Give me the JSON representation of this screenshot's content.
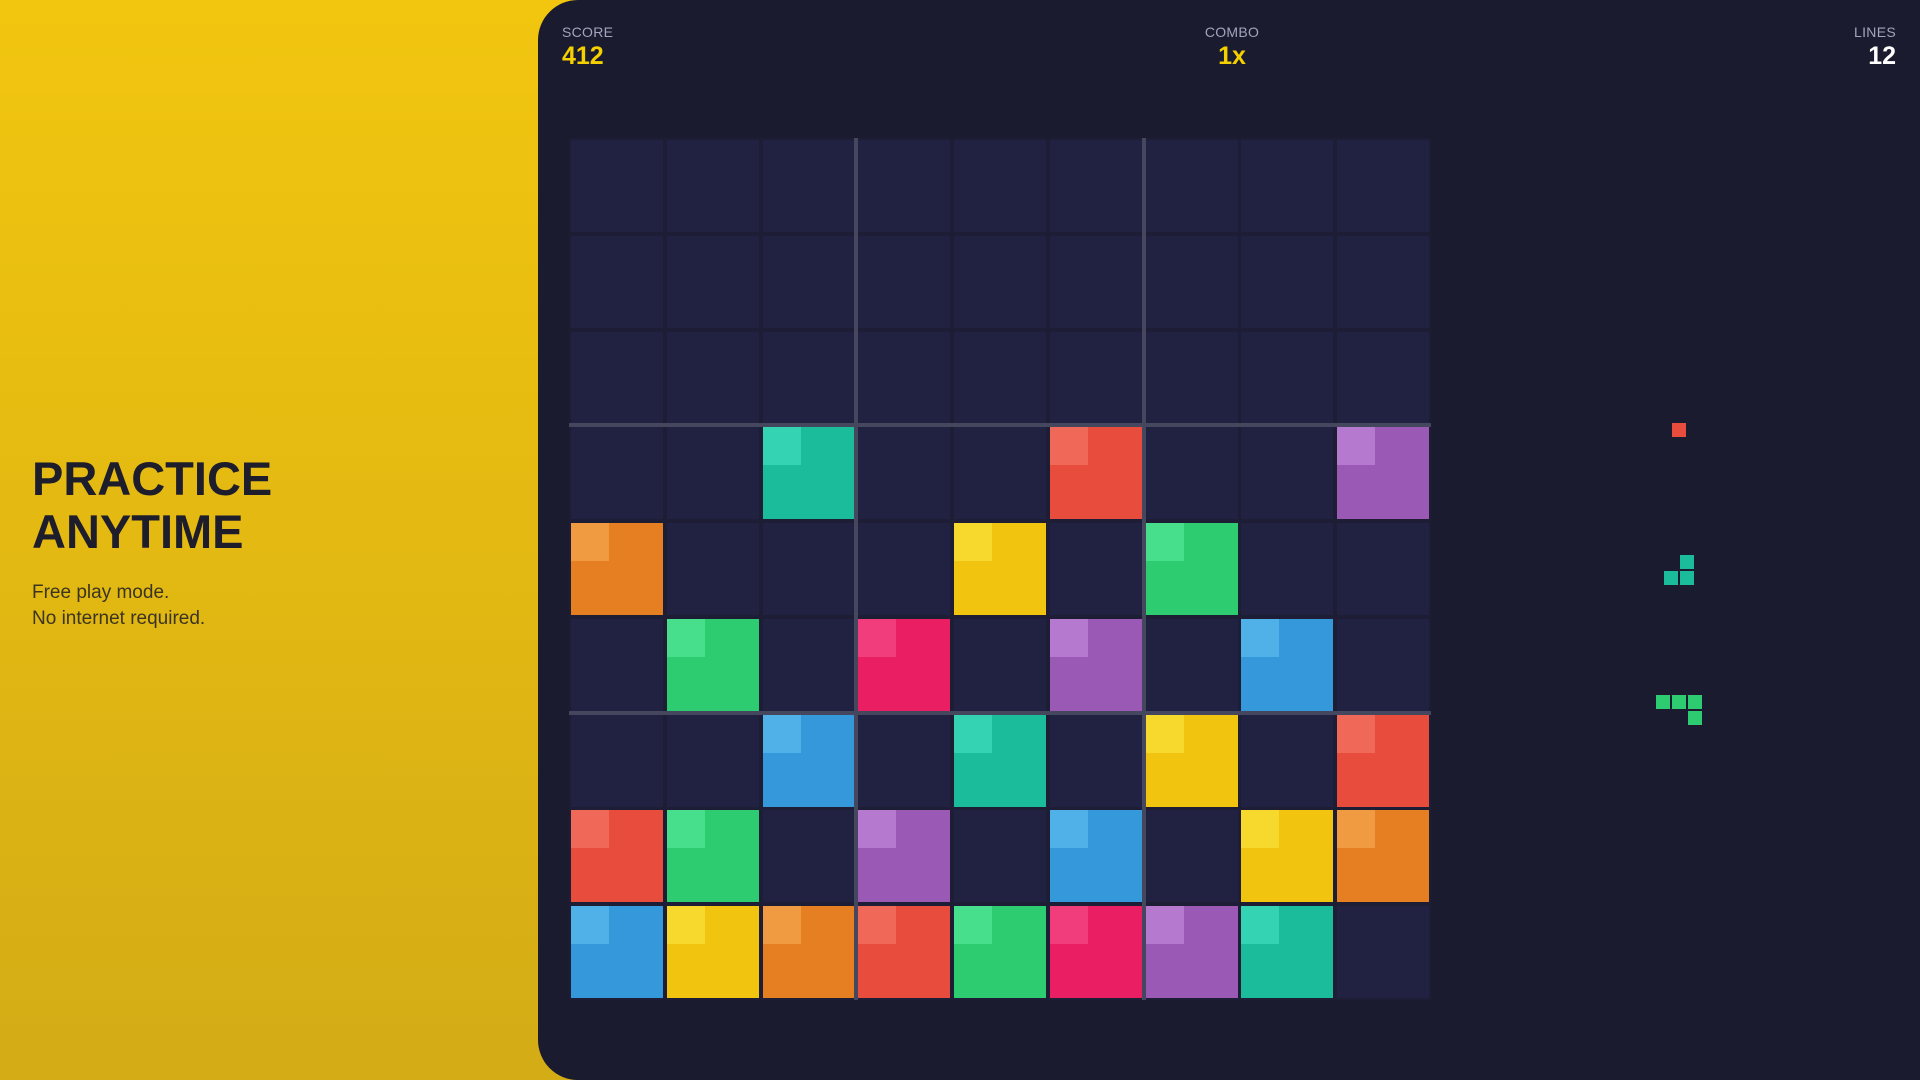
{
  "promo": {
    "headline_line1": "PRACTICE",
    "headline_line2": "ANYTIME",
    "sub_line1": "Free play mode.",
    "sub_line2": "No internet required."
  },
  "hud": {
    "score": {
      "label": "SCORE",
      "value": "412",
      "color": "#f5d000"
    },
    "combo": {
      "label": "COMBO",
      "value": "1x",
      "color": "#f5d000"
    },
    "lines": {
      "label": "LINES",
      "value": "12",
      "color": "#ffffff"
    }
  },
  "colors": {
    "teal": [
      "#1abc9c",
      "#33d3b4"
    ],
    "red": [
      "#e74c3c",
      "#f06958"
    ],
    "purple": [
      "#9b59b6",
      "#b57ad0"
    ],
    "orange": [
      "#e67e22",
      "#f09a42"
    ],
    "yellow": [
      "#f1c40f",
      "#f7d92e"
    ],
    "green": [
      "#2ecc71",
      "#48df8c"
    ],
    "pink": [
      "#e91e63",
      "#f23d7d"
    ],
    "blue": [
      "#3498db",
      "#4fb1e8"
    ]
  },
  "board": [
    [
      null,
      null,
      null,
      null,
      null,
      null,
      null,
      null,
      null
    ],
    [
      null,
      null,
      null,
      null,
      null,
      null,
      null,
      null,
      null
    ],
    [
      null,
      null,
      null,
      null,
      null,
      null,
      null,
      null,
      null
    ],
    [
      null,
      null,
      "teal",
      null,
      null,
      "red",
      null,
      null,
      "purple"
    ],
    [
      "orange",
      null,
      null,
      null,
      "yellow",
      null,
      "green",
      null,
      null
    ],
    [
      null,
      "green",
      null,
      "pink",
      null,
      "purple",
      null,
      "blue",
      null
    ],
    [
      null,
      null,
      "blue",
      null,
      "teal",
      null,
      "yellow",
      null,
      "red"
    ],
    [
      "red",
      "green",
      null,
      "purple",
      null,
      "blue",
      null,
      "yellow",
      "orange"
    ],
    [
      "blue",
      "yellow",
      "orange",
      "red",
      "green",
      "pink",
      "purple",
      "teal",
      null
    ]
  ],
  "next_pieces": [
    {
      "color": "red",
      "cells": [
        [
          0,
          0
        ]
      ]
    },
    {
      "color": "teal",
      "cells": [
        [
          1,
          0
        ],
        [
          0,
          1
        ],
        [
          1,
          1
        ]
      ]
    },
    {
      "color": "green",
      "cells": [
        [
          0,
          0
        ],
        [
          1,
          0
        ],
        [
          2,
          0
        ],
        [
          2,
          1
        ]
      ]
    }
  ]
}
